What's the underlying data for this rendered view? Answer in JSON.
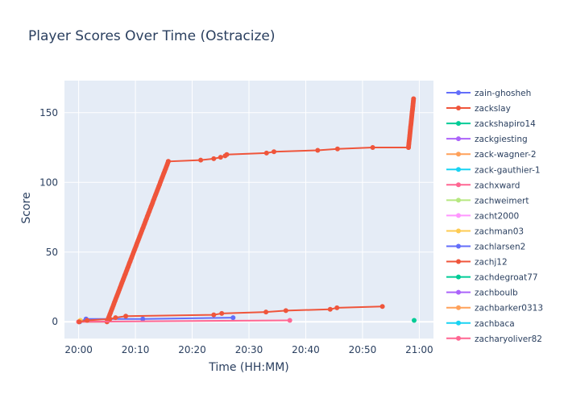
{
  "chart_data": {
    "type": "line",
    "title": "Player Scores Over Time (Ostracize)",
    "xlabel": "Time (HH:MM)",
    "ylabel": "Score",
    "x_ticks": [
      "20:00",
      "20:10",
      "20:20",
      "20:30",
      "20:40",
      "20:50",
      "21:00"
    ],
    "x_tick_minutes": [
      0,
      10,
      20,
      30,
      40,
      50,
      60
    ],
    "xlim_minutes": [
      -2.5,
      62.5
    ],
    "y_ticks": [
      0,
      50,
      100,
      150
    ],
    "ylim": [
      -12,
      173
    ],
    "grid": true,
    "legend_position": "right",
    "series": [
      {
        "name": "zain-ghosheh",
        "color": "#636efa",
        "points": [
          [
            0.2,
            0
          ],
          [
            1.3,
            2
          ],
          [
            11.3,
            2
          ],
          [
            27.2,
            3
          ]
        ]
      },
      {
        "name": "zackslay",
        "color": "#ef553b",
        "segments": [
          {
            "from": [
              5.0,
              0
            ],
            "to": [
              15.8,
              115
            ],
            "n": 90
          },
          {
            "from": [
              58.1,
              125
            ],
            "to": [
              59.0,
              160
            ],
            "n": 30
          }
        ],
        "points": [
          [
            0.0,
            0
          ],
          [
            5.0,
            0
          ],
          [
            15.8,
            115
          ],
          [
            21.5,
            116
          ],
          [
            23.8,
            117
          ],
          [
            25.0,
            118
          ],
          [
            25.8,
            119
          ],
          [
            26.1,
            120
          ],
          [
            33.1,
            121
          ],
          [
            34.4,
            122
          ],
          [
            42.1,
            123
          ],
          [
            45.6,
            124
          ],
          [
            51.8,
            125
          ],
          [
            58.1,
            125
          ]
        ]
      },
      {
        "name": "zackshapiro14",
        "color": "#00cc96",
        "points": [
          [
            59.1,
            1
          ]
        ]
      },
      {
        "name": "zackgiesting",
        "color": "#ab63fa",
        "points": []
      },
      {
        "name": "zack-wagner-2",
        "color": "#ffa15a",
        "points": [
          [
            0.1,
            0
          ]
        ]
      },
      {
        "name": "zack-gauthier-1",
        "color": "#19d3f3",
        "points": []
      },
      {
        "name": "zachxward",
        "color": "#ff6692",
        "points": [
          [
            0.0,
            0
          ],
          [
            37.2,
            1
          ]
        ]
      },
      {
        "name": "zachweimert",
        "color": "#b6e880",
        "points": []
      },
      {
        "name": "zacht2000",
        "color": "#ff97ff",
        "points": []
      },
      {
        "name": "zachman03",
        "color": "#fecb52",
        "points": [
          [
            0.3,
            1
          ]
        ]
      },
      {
        "name": "zachlarsen2",
        "color": "#636efa",
        "points": []
      },
      {
        "name": "zachj12",
        "color": "#ef553b",
        "points": [
          [
            0.1,
            0
          ],
          [
            1.5,
            1
          ],
          [
            5.5,
            2
          ],
          [
            6.5,
            3
          ],
          [
            8.3,
            4
          ],
          [
            23.8,
            5
          ],
          [
            25.2,
            6
          ],
          [
            33.0,
            7
          ],
          [
            36.5,
            8
          ],
          [
            44.3,
            9
          ],
          [
            45.5,
            10
          ],
          [
            53.5,
            11
          ]
        ]
      },
      {
        "name": "zachdegroat77",
        "color": "#00cc96",
        "points": []
      },
      {
        "name": "zachboulb",
        "color": "#ab63fa",
        "points": []
      },
      {
        "name": "zachbarker0313",
        "color": "#ffa15a",
        "points": []
      },
      {
        "name": "zachbaca",
        "color": "#19d3f3",
        "points": []
      },
      {
        "name": "zacharyoliver82",
        "color": "#ff6692",
        "points": []
      }
    ]
  }
}
